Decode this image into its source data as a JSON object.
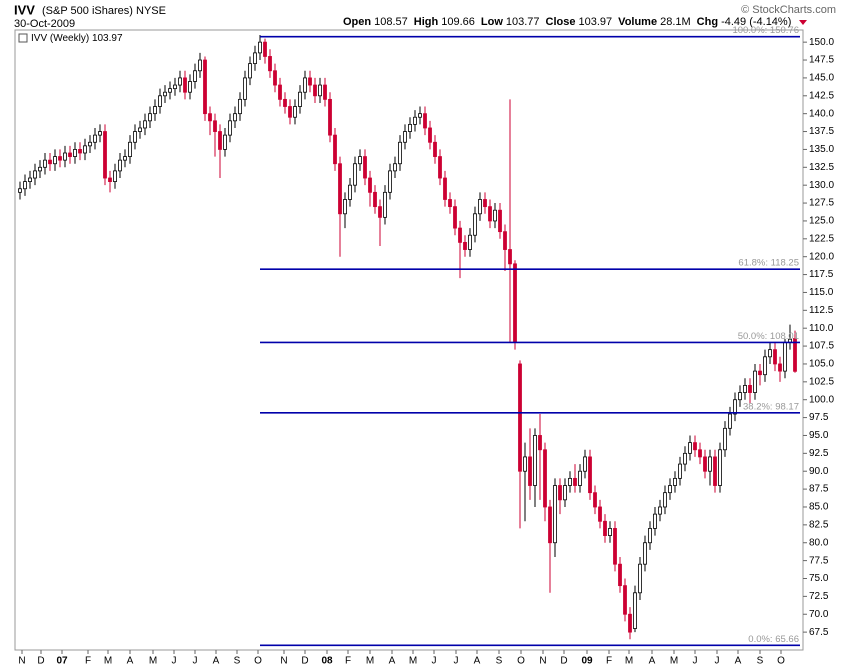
{
  "chart_data": {
    "type": "candlestick",
    "symbol": "IVV",
    "name": "(S&P 500 iShares)",
    "exchange": "NYSE",
    "date": "30-Oct-2009",
    "quote": [
      {
        "label": "Open",
        "value": "108.57"
      },
      {
        "label": "High",
        "value": "109.66"
      },
      {
        "label": "Low",
        "value": "103.77"
      },
      {
        "label": "Close",
        "value": "103.97"
      },
      {
        "label": "Volume",
        "value": "28.1M"
      },
      {
        "label": "Chg",
        "value": "-4.49 (-4.14%)"
      }
    ],
    "credit": "© StockCharts.com",
    "legend": "IVV (Weekly) 103.97",
    "up_color": "#ffffff",
    "down_color": "#cc0033",
    "level_color": "#0000aa",
    "open": [
      129,
      129.5,
      130.5,
      131,
      132,
      132.5,
      133.5,
      133,
      134,
      133.5,
      134.5,
      134,
      135,
      134.5,
      135.5,
      136,
      137,
      137.5,
      131,
      130.5,
      132,
      133.5,
      134,
      136,
      137.5,
      138,
      139,
      140,
      141,
      142.5,
      143,
      143.5,
      144,
      145,
      143,
      144.5,
      146,
      147.5,
      140,
      139,
      137.5,
      135,
      137,
      139,
      140,
      142,
      145,
      147,
      148.5,
      150,
      148,
      146,
      144,
      142,
      141,
      139.5,
      141,
      143,
      145,
      144,
      142.5,
      144,
      142,
      137,
      133,
      126,
      128,
      130,
      133,
      134,
      131,
      129,
      127,
      125.5,
      129,
      132,
      133,
      136,
      137.5,
      138.5,
      139.5,
      140,
      138,
      136,
      134,
      131,
      128,
      127,
      124,
      122,
      121,
      123,
      126,
      128,
      127,
      125,
      126.5,
      123.5,
      121,
      119,
      105,
      90,
      92,
      88,
      95,
      93,
      85,
      80,
      88,
      86,
      88,
      89,
      88,
      90,
      92,
      87,
      85,
      83,
      81,
      82,
      77,
      74,
      70,
      68,
      73,
      77,
      80,
      82,
      84,
      85,
      87,
      88,
      89,
      91,
      92.5,
      94,
      93,
      92,
      90,
      92,
      88,
      93,
      96,
      98,
      100,
      101,
      102,
      101,
      104,
      103.5,
      106,
      107,
      105,
      104,
      108,
      108.57
    ],
    "high": [
      130.5,
      131.5,
      132,
      133,
      133.5,
      134.5,
      134.5,
      135,
      135,
      135.5,
      135.5,
      136,
      136,
      136.5,
      137,
      138,
      138.5,
      138.5,
      132,
      133,
      134.5,
      135,
      137,
      138.5,
      139,
      140,
      141,
      142,
      143.5,
      144,
      144.5,
      145,
      146,
      146,
      145.5,
      147,
      148.5,
      148,
      141,
      140,
      138.5,
      138,
      140,
      141,
      143,
      146,
      148,
      149.5,
      151,
      150.5,
      149,
      147,
      145,
      143,
      142,
      142,
      144,
      146,
      146,
      145,
      145,
      145,
      143,
      138,
      134,
      129,
      131,
      134,
      135,
      135,
      132,
      130,
      128,
      130,
      133,
      134,
      137,
      138.5,
      139.5,
      140.5,
      141,
      141,
      139,
      137,
      135,
      132,
      129,
      128,
      125,
      123,
      124,
      127,
      129,
      129,
      128,
      127.5,
      127.5,
      124.5,
      142,
      119.5,
      105.5,
      94,
      96,
      96,
      98,
      94,
      86,
      89,
      89,
      89,
      90,
      91,
      91,
      93,
      93,
      88,
      86,
      84,
      83,
      83,
      78,
      75,
      71,
      74,
      78,
      81,
      83,
      85,
      86,
      88,
      89,
      90,
      92,
      93.5,
      95,
      95,
      94,
      93,
      93,
      93,
      94,
      97,
      99,
      101,
      102,
      103,
      103,
      105,
      105,
      107,
      108,
      108,
      106,
      108.5,
      110.5,
      109.66
    ],
    "low": [
      128,
      128.5,
      129.5,
      130,
      131,
      131.5,
      132,
      132,
      132.5,
      132.5,
      133,
      133,
      133.5,
      133.5,
      134.5,
      135,
      136,
      130,
      129,
      129.5,
      131,
      132.5,
      133,
      135,
      136.5,
      137,
      138,
      139,
      140,
      141.5,
      142,
      142.5,
      143,
      142,
      142,
      143.5,
      145,
      139,
      137,
      134,
      131,
      134,
      136,
      138,
      139,
      141,
      144,
      146,
      147.5,
      147,
      145,
      143,
      141,
      140,
      138.5,
      138.5,
      140,
      142,
      143,
      141.5,
      141.5,
      141,
      136,
      132,
      120,
      124,
      127,
      129,
      132,
      130,
      127,
      126,
      121.5,
      124.5,
      128,
      131,
      132,
      135,
      136.5,
      137.5,
      138.5,
      137,
      135,
      133,
      130,
      127,
      126,
      123,
      117,
      120,
      120,
      122,
      125,
      126,
      124,
      124,
      122.5,
      118,
      108,
      107,
      82,
      83,
      86,
      85,
      86,
      83,
      73,
      78,
      84,
      85,
      87,
      87,
      87,
      89,
      86,
      84,
      82,
      80,
      80,
      76,
      73,
      69,
      66.5,
      67.5,
      72,
      76,
      79,
      81,
      83,
      84,
      86,
      87,
      88,
      90,
      91.5,
      92,
      91,
      89,
      88,
      87,
      87,
      92,
      95,
      97,
      99,
      100,
      99.5,
      100,
      102,
      102.5,
      105,
      104,
      102.5,
      103,
      107,
      103.77
    ],
    "close": [
      129.5,
      130.5,
      131,
      132,
      132.5,
      133.5,
      133,
      134,
      133.5,
      134.5,
      134,
      135,
      134.5,
      135.5,
      136,
      137,
      137.5,
      131,
      130.5,
      132,
      133.5,
      134,
      136,
      137.5,
      138,
      139,
      140,
      141,
      142.5,
      143,
      143.5,
      144,
      145,
      143,
      144.5,
      146,
      147.5,
      140,
      139,
      137.5,
      135,
      137,
      139,
      140,
      142,
      145,
      147,
      148.5,
      150,
      148,
      146,
      144,
      142,
      141,
      139.5,
      141,
      143,
      145,
      144,
      142.5,
      144,
      142,
      137,
      133,
      126,
      128,
      130,
      133,
      134,
      131,
      129,
      127,
      125.5,
      129,
      132,
      133,
      136,
      137.5,
      138.5,
      139.5,
      140,
      138,
      136,
      134,
      131,
      128,
      127,
      124,
      122,
      121,
      123,
      126,
      128,
      127,
      125,
      126.5,
      123.5,
      121,
      119,
      108,
      90,
      92,
      88,
      95,
      93,
      85,
      80,
      88,
      86,
      88,
      89,
      88,
      90,
      92,
      87,
      85,
      83,
      81,
      82,
      77,
      74,
      70,
      67.5,
      73,
      77,
      80,
      82,
      84,
      85,
      87,
      88,
      89,
      91,
      92.5,
      94,
      93,
      92,
      90,
      92,
      88,
      93,
      96,
      98,
      100,
      101,
      102,
      101,
      104,
      103.5,
      106,
      107,
      105,
      104,
      108,
      108.46,
      103.97
    ],
    "levels": [
      {
        "value": 150.76,
        "label": "100.0%: 150.76"
      },
      {
        "value": 118.25,
        "label": "61.8%: 118.25"
      },
      {
        "value": 108.01,
        "label": "50.0%: 108.01"
      },
      {
        "value": 98.17,
        "label": "38.2%: 98.17"
      },
      {
        "value": 65.66,
        "label": "0.0%: 65.66"
      }
    ],
    "levels_start": 48,
    "xlim": [
      -1,
      156.6
    ],
    "ylim": [
      65,
      151.7
    ],
    "xticks": [
      {
        "value": 0.4,
        "label": "N"
      },
      {
        "value": 4.2,
        "label": "D"
      },
      {
        "value": 8.4,
        "label": "07"
      },
      {
        "value": 13.6,
        "label": "F"
      },
      {
        "value": 17.6,
        "label": "M"
      },
      {
        "value": 22,
        "label": "A"
      },
      {
        "value": 26.6,
        "label": "M"
      },
      {
        "value": 30.8,
        "label": "J"
      },
      {
        "value": 35,
        "label": "J"
      },
      {
        "value": 39.2,
        "label": "A"
      },
      {
        "value": 43.4,
        "label": "S"
      },
      {
        "value": 47.6,
        "label": "O"
      },
      {
        "value": 52.8,
        "label": "N"
      },
      {
        "value": 57,
        "label": "D"
      },
      {
        "value": 61.4,
        "label": "08"
      },
      {
        "value": 65.6,
        "label": "F"
      },
      {
        "value": 70,
        "label": "M"
      },
      {
        "value": 74.4,
        "label": "A"
      },
      {
        "value": 78.6,
        "label": "M"
      },
      {
        "value": 82.8,
        "label": "J"
      },
      {
        "value": 87.2,
        "label": "J"
      },
      {
        "value": 91.4,
        "label": "A"
      },
      {
        "value": 95.8,
        "label": "S"
      },
      {
        "value": 100.2,
        "label": "O"
      },
      {
        "value": 104.6,
        "label": "N"
      },
      {
        "value": 108.8,
        "label": "D"
      },
      {
        "value": 113.4,
        "label": "09"
      },
      {
        "value": 117.8,
        "label": "F"
      },
      {
        "value": 121.8,
        "label": "M"
      },
      {
        "value": 126.4,
        "label": "A"
      },
      {
        "value": 130.8,
        "label": "M"
      },
      {
        "value": 135,
        "label": "J"
      },
      {
        "value": 139.4,
        "label": "J"
      },
      {
        "value": 143.6,
        "label": "A"
      },
      {
        "value": 148,
        "label": "S"
      },
      {
        "value": 152.2,
        "label": "O"
      }
    ],
    "yticks": [
      67.5,
      {
        "value": 70,
        "label": "70.0"
      },
      72.5,
      {
        "value": 75,
        "label": "75.0"
      },
      77.5,
      {
        "value": 80,
        "label": "80.0"
      },
      82.5,
      {
        "value": 85,
        "label": "85.0"
      },
      87.5,
      {
        "value": 90,
        "label": "90.0"
      },
      92.5,
      {
        "value": 95,
        "label": "95.0"
      },
      97.5,
      {
        "value": 100,
        "label": "100.0"
      },
      102.5,
      {
        "value": 105,
        "label": "105.0"
      },
      107.5,
      {
        "value": 110,
        "label": "110.0"
      },
      112.5,
      {
        "value": 115,
        "label": "115.0"
      },
      117.5,
      {
        "value": 120,
        "label": "120.0"
      },
      122.5,
      {
        "value": 125,
        "label": "125.0"
      },
      127.5,
      {
        "value": 130,
        "label": "130.0"
      },
      132.5,
      {
        "value": 135,
        "label": "135.0"
      },
      137.5,
      {
        "value": 140,
        "label": "140.0"
      },
      142.5,
      {
        "value": 145,
        "label": "145.0"
      },
      147.5,
      {
        "value": 150,
        "label": "150.0"
      }
    ]
  }
}
